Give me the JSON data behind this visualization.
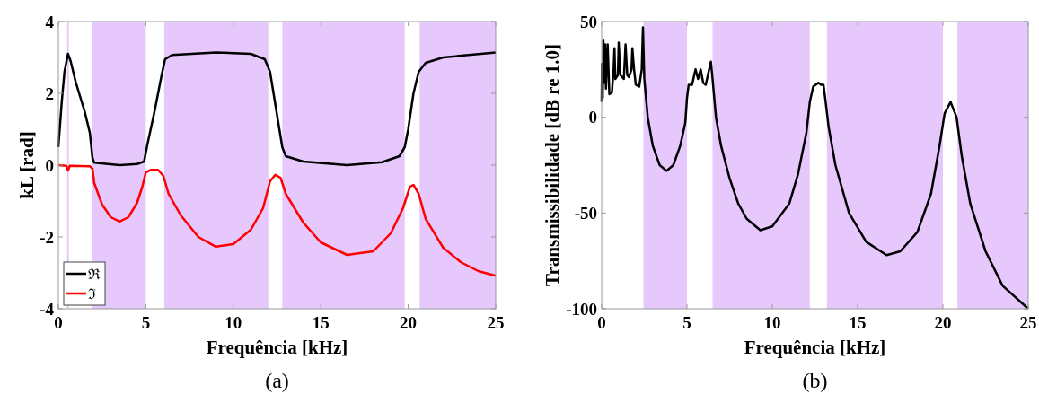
{
  "chart_data": [
    {
      "type": "line",
      "xlabel": "Frequência [kHz]",
      "ylabel": "kL [rad]",
      "annotations": [
        "(a)"
      ],
      "xlim": [
        0,
        25
      ],
      "ylim": [
        -4,
        4
      ],
      "xticks": [
        0,
        5,
        10,
        15,
        20,
        25
      ],
      "yticks": [
        -4,
        -2,
        0,
        2,
        4
      ],
      "grid": false,
      "legend": "bottom left",
      "line_style": "solid",
      "bands": [
        {
          "axis": "x",
          "from": 0.5,
          "to": 0.6,
          "color": "#e6c8fc"
        },
        {
          "axis": "x",
          "from": 1.95,
          "to": 5.0,
          "color": "#e6c8fc"
        },
        {
          "axis": "x",
          "from": 6.05,
          "to": 12.0,
          "color": "#e6c8fc"
        },
        {
          "axis": "x",
          "from": 12.8,
          "to": 19.8,
          "color": "#e6c8fc"
        },
        {
          "axis": "x",
          "from": 20.65,
          "to": 25,
          "color": "#e6c8fc"
        }
      ],
      "series": [
        {
          "name": "ℜ",
          "color": "#000000",
          "x": [
            0,
            0.2,
            0.35,
            0.55,
            0.7,
            1.0,
            1.5,
            1.8,
            1.95,
            2.05,
            3.5,
            4.5,
            4.9,
            5.1,
            5.5,
            5.9,
            6.1,
            6.5,
            9,
            11,
            11.8,
            12.1,
            12.5,
            12.8,
            13.0,
            14,
            16.5,
            18.5,
            19.5,
            19.8,
            20.0,
            20.3,
            20.6,
            21,
            22,
            25
          ],
          "values": [
            0.5,
            1.8,
            2.6,
            3.1,
            2.9,
            2.3,
            1.5,
            0.9,
            0.2,
            0.07,
            0.0,
            0.03,
            0.1,
            0.6,
            1.5,
            2.5,
            2.95,
            3.07,
            3.14,
            3.1,
            2.95,
            2.6,
            1.4,
            0.5,
            0.25,
            0.1,
            0.0,
            0.08,
            0.25,
            0.5,
            1.0,
            2.0,
            2.6,
            2.85,
            3.0,
            3.14
          ]
        },
        {
          "name": "ℑ",
          "color": "#ff0000",
          "x": [
            0,
            0.45,
            0.55,
            0.65,
            1.8,
            1.95,
            2.05,
            2.5,
            3.0,
            3.5,
            4.0,
            4.5,
            4.8,
            5.0,
            5.3,
            5.7,
            6.0,
            6.3,
            7,
            8,
            9,
            10,
            11,
            11.7,
            12.1,
            12.4,
            12.7,
            13,
            14,
            15,
            16.5,
            18,
            19,
            19.7,
            20.1,
            20.3,
            20.6,
            21,
            22,
            23,
            24,
            25
          ],
          "values": [
            0,
            -0.02,
            -0.15,
            -0.02,
            -0.03,
            -0.1,
            -0.5,
            -1.1,
            -1.45,
            -1.57,
            -1.45,
            -1.05,
            -0.6,
            -0.2,
            -0.13,
            -0.13,
            -0.3,
            -0.8,
            -1.4,
            -2.0,
            -2.27,
            -2.2,
            -1.8,
            -1.2,
            -0.45,
            -0.27,
            -0.35,
            -0.8,
            -1.6,
            -2.15,
            -2.5,
            -2.4,
            -1.9,
            -1.2,
            -0.6,
            -0.55,
            -0.8,
            -1.5,
            -2.3,
            -2.7,
            -2.95,
            -3.08
          ]
        }
      ]
    },
    {
      "type": "line",
      "xlabel": "Frequência [kHz]",
      "ylabel": "Transmissibilidade [dB  re 1.0]",
      "annotations": [
        "(b)"
      ],
      "xlim": [
        0,
        25
      ],
      "ylim": [
        -100,
        50
      ],
      "xticks": [
        0,
        5,
        10,
        15,
        20,
        25
      ],
      "yticks": [
        -100,
        -50,
        0,
        50
      ],
      "grid": false,
      "line_style": "solid",
      "bands": [
        {
          "axis": "x",
          "from": 2.45,
          "to": 5.0,
          "color": "#e6c8fc"
        },
        {
          "axis": "x",
          "from": 6.5,
          "to": 12.2,
          "color": "#e6c8fc"
        },
        {
          "axis": "x",
          "from": 13.2,
          "to": 20.0,
          "color": "#e6c8fc"
        },
        {
          "axis": "x",
          "from": 20.85,
          "to": 25,
          "color": "#e6c8fc"
        }
      ],
      "series": [
        {
          "color": "#000000",
          "x": [
            0,
            0.02,
            0.06,
            0.1,
            0.15,
            0.2,
            0.25,
            0.35,
            0.45,
            0.6,
            0.7,
            0.75,
            0.8,
            0.95,
            1.0,
            1.1,
            1.3,
            1.4,
            1.5,
            1.6,
            1.75,
            1.8,
            1.9,
            2.0,
            2.2,
            2.35,
            2.42,
            2.5,
            2.7,
            3.0,
            3.4,
            3.8,
            4.2,
            4.6,
            4.9,
            5.0,
            5.1,
            5.3,
            5.5,
            5.65,
            5.8,
            5.95,
            6.1,
            6.3,
            6.4,
            6.5,
            6.7,
            7.0,
            7.5,
            8,
            8.5,
            9.3,
            10,
            11,
            11.5,
            12,
            12.2,
            12.4,
            12.7,
            12.85,
            13.0,
            13.1,
            13.3,
            13.7,
            14.5,
            15.5,
            16.7,
            17.5,
            18.5,
            19.3,
            19.8,
            20.1,
            20.45,
            20.8,
            21.1,
            21.6,
            22.5,
            23.5,
            25
          ],
          "values": [
            8,
            28,
            10,
            40,
            18,
            38,
            15,
            38,
            12,
            13,
            25,
            36,
            20,
            22,
            39,
            22,
            20,
            38,
            22,
            21,
            25,
            36,
            25,
            17,
            16,
            25,
            47,
            20,
            0,
            -15,
            -25,
            -28,
            -25,
            -15,
            -3,
            10,
            17,
            17,
            25,
            20,
            25,
            18,
            17,
            25,
            29,
            20,
            0,
            -15,
            -32,
            -45,
            -53,
            -59,
            -57,
            -45,
            -30,
            -8,
            8,
            16,
            18,
            17,
            17,
            10,
            -5,
            -25,
            -50,
            -65,
            -72,
            -70,
            -60,
            -40,
            -15,
            2,
            8,
            0,
            -20,
            -45,
            -70,
            -88,
            -100
          ]
        }
      ]
    }
  ]
}
